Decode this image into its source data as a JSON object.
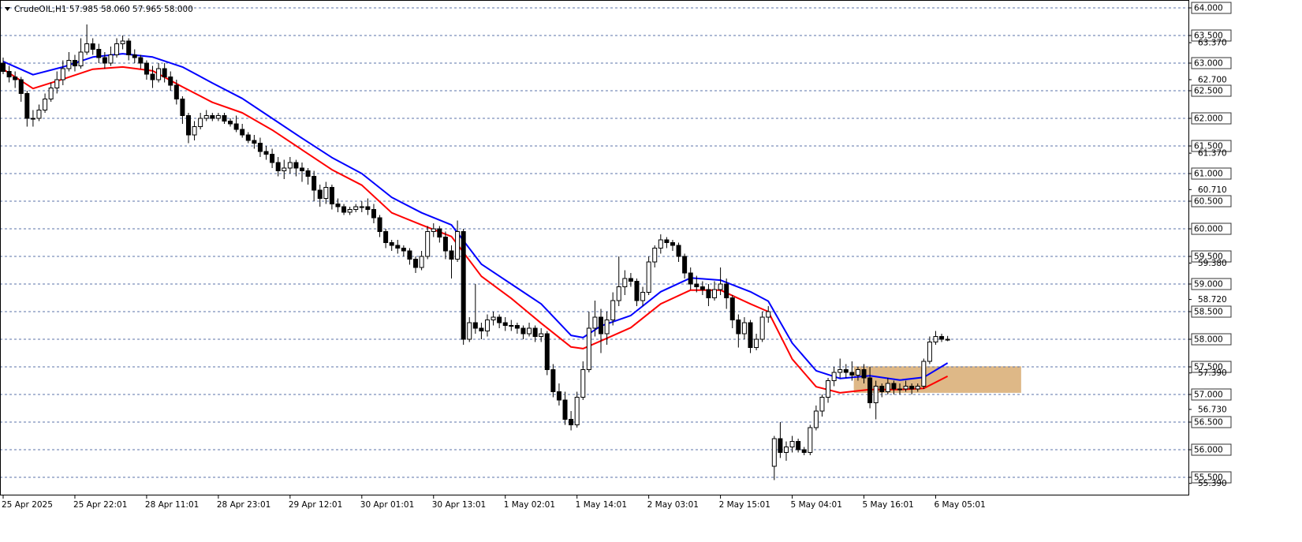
{
  "chart_data": {
    "type": "candlestick",
    "title": "CrudeOIL,H1  57.985 58.060 57.965 58.000",
    "candles": [
      [
        63.0,
        63.1,
        62.8,
        62.85
      ],
      [
        62.85,
        62.95,
        62.65,
        62.75
      ],
      [
        62.75,
        62.85,
        62.55,
        62.7
      ],
      [
        62.7,
        62.75,
        62.3,
        62.45
      ],
      [
        62.45,
        62.5,
        61.85,
        62.0
      ],
      [
        62.0,
        62.15,
        61.85,
        62.0
      ],
      [
        62.0,
        62.25,
        61.95,
        62.15
      ],
      [
        62.15,
        62.45,
        62.1,
        62.35
      ],
      [
        62.35,
        62.65,
        62.3,
        62.55
      ],
      [
        62.55,
        62.85,
        62.45,
        62.7
      ],
      [
        62.7,
        63.05,
        62.6,
        62.9
      ],
      [
        62.9,
        63.2,
        62.85,
        63.05
      ],
      [
        63.05,
        63.15,
        62.85,
        62.95
      ],
      [
        62.95,
        63.45,
        62.9,
        63.2
      ],
      [
        63.2,
        63.7,
        63.15,
        63.35
      ],
      [
        63.35,
        63.45,
        63.15,
        63.25
      ],
      [
        63.25,
        63.35,
        63.0,
        63.1
      ],
      [
        63.1,
        63.2,
        62.9,
        63.0
      ],
      [
        63.0,
        63.3,
        62.95,
        63.15
      ],
      [
        63.15,
        63.45,
        63.1,
        63.35
      ],
      [
        63.35,
        63.5,
        63.25,
        63.4
      ],
      [
        63.4,
        63.45,
        63.05,
        63.15
      ],
      [
        63.15,
        63.25,
        63.0,
        63.1
      ],
      [
        63.1,
        63.15,
        62.9,
        63.0
      ],
      [
        63.0,
        63.05,
        62.7,
        62.8
      ],
      [
        62.8,
        62.95,
        62.55,
        62.7
      ],
      [
        62.7,
        63.0,
        62.65,
        62.9
      ],
      [
        62.9,
        63.0,
        62.65,
        62.75
      ],
      [
        62.75,
        62.85,
        62.5,
        62.6
      ],
      [
        62.6,
        62.7,
        62.25,
        62.35
      ],
      [
        62.35,
        62.4,
        61.9,
        62.05
      ],
      [
        62.05,
        62.1,
        61.55,
        61.7
      ],
      [
        61.7,
        61.95,
        61.6,
        61.85
      ],
      [
        61.85,
        62.1,
        61.8,
        62.0
      ],
      [
        62.0,
        62.15,
        61.95,
        62.05
      ],
      [
        62.05,
        62.1,
        61.95,
        62.0
      ],
      [
        62.0,
        62.1,
        61.95,
        62.05
      ],
      [
        62.05,
        62.1,
        61.9,
        61.95
      ],
      [
        61.95,
        62.0,
        61.85,
        61.9
      ],
      [
        61.9,
        62.05,
        61.75,
        61.8
      ],
      [
        61.8,
        61.9,
        61.65,
        61.7
      ],
      [
        61.7,
        61.75,
        61.55,
        61.6
      ],
      [
        61.6,
        61.7,
        61.45,
        61.55
      ],
      [
        61.55,
        61.65,
        61.3,
        61.4
      ],
      [
        61.4,
        61.5,
        61.25,
        61.35
      ],
      [
        61.35,
        61.45,
        61.1,
        61.2
      ],
      [
        61.2,
        61.3,
        60.95,
        61.05
      ],
      [
        61.05,
        61.25,
        60.9,
        61.1
      ],
      [
        61.1,
        61.3,
        61.0,
        61.2
      ],
      [
        61.2,
        61.25,
        60.95,
        61.1
      ],
      [
        61.1,
        61.2,
        60.85,
        61.05
      ],
      [
        61.05,
        61.1,
        60.8,
        60.95
      ],
      [
        60.95,
        61.05,
        60.5,
        60.7
      ],
      [
        60.7,
        60.8,
        60.4,
        60.55
      ],
      [
        60.55,
        60.85,
        60.45,
        60.75
      ],
      [
        60.75,
        60.8,
        60.35,
        60.45
      ],
      [
        60.45,
        60.55,
        60.3,
        60.4
      ],
      [
        60.4,
        60.45,
        60.25,
        60.3
      ],
      [
        60.3,
        60.4,
        60.25,
        60.35
      ],
      [
        60.35,
        60.45,
        60.3,
        60.4
      ],
      [
        60.4,
        60.5,
        60.3,
        60.4
      ],
      [
        60.4,
        60.55,
        60.25,
        60.35
      ],
      [
        60.35,
        60.45,
        60.1,
        60.2
      ],
      [
        60.2,
        60.25,
        59.85,
        59.95
      ],
      [
        59.95,
        60.0,
        59.65,
        59.75
      ],
      [
        59.75,
        59.8,
        59.6,
        59.7
      ],
      [
        59.7,
        59.8,
        59.55,
        59.65
      ],
      [
        59.65,
        59.7,
        59.5,
        59.6
      ],
      [
        59.6,
        59.65,
        59.35,
        59.45
      ],
      [
        59.45,
        59.5,
        59.2,
        59.3
      ],
      [
        59.3,
        59.6,
        59.25,
        59.5
      ],
      [
        59.5,
        60.05,
        59.45,
        59.95
      ],
      [
        59.95,
        60.1,
        59.85,
        60.0
      ],
      [
        60.0,
        60.05,
        59.75,
        59.85
      ],
      [
        59.85,
        59.95,
        59.45,
        59.6
      ],
      [
        59.6,
        59.7,
        59.1,
        59.45
      ],
      [
        59.45,
        60.15,
        59.4,
        59.95
      ],
      [
        59.95,
        60.0,
        57.9,
        58.0
      ],
      [
        58.0,
        58.4,
        57.95,
        58.3
      ],
      [
        58.3,
        59.0,
        58.1,
        58.2
      ],
      [
        58.2,
        58.3,
        58.0,
        58.15
      ],
      [
        58.15,
        58.45,
        58.05,
        58.35
      ],
      [
        58.35,
        58.5,
        58.25,
        58.4
      ],
      [
        58.4,
        58.45,
        58.2,
        58.3
      ],
      [
        58.3,
        58.4,
        58.15,
        58.25
      ],
      [
        58.25,
        58.35,
        58.15,
        58.25
      ],
      [
        58.25,
        58.3,
        58.1,
        58.2
      ],
      [
        58.2,
        58.25,
        58.0,
        58.1
      ],
      [
        58.1,
        58.3,
        58.05,
        58.2
      ],
      [
        58.2,
        58.25,
        57.95,
        58.05
      ],
      [
        58.05,
        58.2,
        57.95,
        58.1
      ],
      [
        58.1,
        58.15,
        57.35,
        57.45
      ],
      [
        57.45,
        57.55,
        56.95,
        57.05
      ],
      [
        57.05,
        57.2,
        56.8,
        56.9
      ],
      [
        56.9,
        57.05,
        56.45,
        56.55
      ],
      [
        56.55,
        56.7,
        56.35,
        56.45
      ],
      [
        56.45,
        57.05,
        56.4,
        56.95
      ],
      [
        56.95,
        57.6,
        56.9,
        57.45
      ],
      [
        57.45,
        58.5,
        57.4,
        58.2
      ],
      [
        58.2,
        58.7,
        58.05,
        58.4
      ],
      [
        58.4,
        58.55,
        57.75,
        58.1
      ],
      [
        58.1,
        58.5,
        57.9,
        58.35
      ],
      [
        58.35,
        58.85,
        58.25,
        58.7
      ],
      [
        58.7,
        59.5,
        58.6,
        58.95
      ],
      [
        58.95,
        59.25,
        58.8,
        59.1
      ],
      [
        59.1,
        59.2,
        58.95,
        59.05
      ],
      [
        59.05,
        59.1,
        58.6,
        58.7
      ],
      [
        58.7,
        58.95,
        58.6,
        58.85
      ],
      [
        58.85,
        59.5,
        58.8,
        59.4
      ],
      [
        59.4,
        59.7,
        59.3,
        59.65
      ],
      [
        59.65,
        59.9,
        59.55,
        59.8
      ],
      [
        59.8,
        59.85,
        59.65,
        59.75
      ],
      [
        59.75,
        59.8,
        59.6,
        59.7
      ],
      [
        59.7,
        59.75,
        59.4,
        59.5
      ],
      [
        59.5,
        59.55,
        59.1,
        59.2
      ],
      [
        59.2,
        59.3,
        58.9,
        59.0
      ],
      [
        59.0,
        59.15,
        58.85,
        58.95
      ],
      [
        58.95,
        59.05,
        58.8,
        58.9
      ],
      [
        58.9,
        59.0,
        58.6,
        58.75
      ],
      [
        58.75,
        59.05,
        58.7,
        58.9
      ],
      [
        58.9,
        59.3,
        58.8,
        59.0
      ],
      [
        59.0,
        59.1,
        58.55,
        58.75
      ],
      [
        58.75,
        58.8,
        58.2,
        58.35
      ],
      [
        58.35,
        58.45,
        57.85,
        58.1
      ],
      [
        58.1,
        58.4,
        58.0,
        58.3
      ],
      [
        58.3,
        58.35,
        57.75,
        57.85
      ],
      [
        57.85,
        58.1,
        57.8,
        58.0
      ],
      [
        58.0,
        58.5,
        57.95,
        58.4
      ],
      [
        58.4,
        58.6,
        58.3,
        58.5
      ],
      [
        55.7,
        56.25,
        55.45,
        56.2
      ],
      [
        56.2,
        56.5,
        55.85,
        55.95
      ],
      [
        55.95,
        56.15,
        55.8,
        56.05
      ],
      [
        56.05,
        56.25,
        55.95,
        56.15
      ],
      [
        56.15,
        56.2,
        55.95,
        56.0
      ],
      [
        56.0,
        56.05,
        55.9,
        55.95
      ],
      [
        55.95,
        56.45,
        55.9,
        56.4
      ],
      [
        56.4,
        56.8,
        56.35,
        56.7
      ],
      [
        56.7,
        57.0,
        56.6,
        56.95
      ],
      [
        56.95,
        57.3,
        56.85,
        57.25
      ],
      [
        57.25,
        57.5,
        57.15,
        57.4
      ],
      [
        57.4,
        57.65,
        57.3,
        57.45
      ],
      [
        57.45,
        57.55,
        57.3,
        57.4
      ],
      [
        57.4,
        57.6,
        57.25,
        57.35
      ],
      [
        57.35,
        57.5,
        57.25,
        57.45
      ],
      [
        57.45,
        57.55,
        57.2,
        57.3
      ],
      [
        57.3,
        57.5,
        56.75,
        56.85
      ],
      [
        56.85,
        57.25,
        56.55,
        57.15
      ],
      [
        57.15,
        57.2,
        56.95,
        57.05
      ],
      [
        57.05,
        57.3,
        57.0,
        57.2
      ],
      [
        57.2,
        57.25,
        57.0,
        57.1
      ],
      [
        57.1,
        57.2,
        57.0,
        57.1
      ],
      [
        57.1,
        57.25,
        57.05,
        57.15
      ],
      [
        57.15,
        57.2,
        57.0,
        57.1
      ],
      [
        57.1,
        57.2,
        57.05,
        57.15
      ],
      [
        57.15,
        57.65,
        57.1,
        57.6
      ],
      [
        57.6,
        58.05,
        57.55,
        57.95
      ],
      [
        57.95,
        58.15,
        57.9,
        58.05
      ],
      [
        58.05,
        58.1,
        57.95,
        58.0
      ],
      [
        57.985,
        58.06,
        57.965,
        58.0
      ]
    ],
    "lines": [
      {
        "color": "#0000ff",
        "x": [
          0,
          5,
          10,
          15,
          20,
          25,
          30,
          35,
          40,
          45,
          50,
          55,
          60,
          65,
          70,
          75,
          80,
          85,
          90,
          95,
          97,
          100,
          105,
          110,
          115,
          120,
          125,
          128,
          132,
          136,
          140,
          145,
          150,
          154,
          158
        ],
        "values": [
          63.03,
          62.79,
          62.93,
          63.11,
          63.17,
          63.11,
          62.93,
          62.64,
          62.36,
          62.0,
          61.64,
          61.29,
          61.0,
          60.57,
          60.29,
          60.07,
          59.36,
          59.0,
          58.64,
          58.07,
          58.03,
          58.24,
          58.43,
          58.86,
          59.11,
          59.07,
          58.86,
          58.69,
          57.93,
          57.43,
          57.29,
          57.34,
          57.26,
          57.31,
          57.57
        ]
      },
      {
        "color": "#ff0000",
        "x": [
          0,
          5,
          10,
          15,
          20,
          25,
          30,
          35,
          40,
          45,
          50,
          55,
          60,
          65,
          70,
          75,
          80,
          85,
          90,
          95,
          97,
          100,
          105,
          110,
          115,
          120,
          125,
          128,
          132,
          136,
          140,
          145,
          150,
          154,
          158
        ],
        "values": [
          62.89,
          62.54,
          62.71,
          62.89,
          62.93,
          62.86,
          62.57,
          62.29,
          62.1,
          61.79,
          61.43,
          61.07,
          60.79,
          60.29,
          60.07,
          59.86,
          59.14,
          58.74,
          58.29,
          57.86,
          57.83,
          57.97,
          58.21,
          58.64,
          58.89,
          58.89,
          58.64,
          58.5,
          57.64,
          57.14,
          57.03,
          57.09,
          57.09,
          57.11,
          57.33
        ]
      }
    ],
    "zone": {
      "xlim": [
        142.3,
        170.3
      ],
      "ylim": [
        57.03,
        57.51
      ],
      "color": "#deb887"
    },
    "xlim": [
      -0.528,
      198.417
    ],
    "ylim": [
      55.186,
      64.143
    ],
    "xticks": [
      {
        "value": 0,
        "label": "25 Apr 2025"
      },
      {
        "value": 12,
        "label": "25 Apr 22:01"
      },
      {
        "value": 24,
        "label": "28 Apr 11:01"
      },
      {
        "value": 36,
        "label": "28 Apr 23:01"
      },
      {
        "value": 48,
        "label": "29 Apr 12:01"
      },
      {
        "value": 60,
        "label": "30 Apr 01:01"
      },
      {
        "value": 72,
        "label": "30 Apr 13:01"
      },
      {
        "value": 84,
        "label": "1 May 02:01"
      },
      {
        "value": 96,
        "label": "1 May 14:01"
      },
      {
        "value": 108,
        "label": "2 May 03:01"
      },
      {
        "value": 120,
        "label": "2 May 15:01"
      },
      {
        "value": 132,
        "label": "5 May 04:01"
      },
      {
        "value": 144,
        "label": "5 May 16:01"
      },
      {
        "value": 156,
        "label": "6 May 05:01"
      }
    ],
    "yticks": [
      {
        "value": 64,
        "label": "64.000"
      },
      {
        "value": 63.5,
        "label": "63.500"
      },
      {
        "value": 63,
        "label": "63.000"
      },
      {
        "value": 62.5,
        "label": "62.500"
      },
      {
        "value": 62,
        "label": "62.000"
      },
      {
        "value": 61.5,
        "label": "61.500"
      },
      {
        "value": 61,
        "label": "61.000"
      },
      {
        "value": 60.5,
        "label": "60.500"
      },
      {
        "value": 60,
        "label": "60.000"
      },
      {
        "value": 59.5,
        "label": "59.500"
      },
      {
        "value": 59,
        "label": "59.000"
      },
      {
        "value": 58.5,
        "label": "58.500"
      },
      {
        "value": 58,
        "label": "58.000"
      },
      {
        "value": 57.5,
        "label": "57.500"
      },
      {
        "value": 57,
        "label": "57.000"
      },
      {
        "value": 56.5,
        "label": "56.500"
      },
      {
        "value": 56,
        "label": "56.000"
      },
      {
        "value": 55.5,
        "label": "55.500"
      }
    ],
    "yticks_minor": [
      {
        "value": 63.37,
        "label": "63.370"
      },
      {
        "value": 62.7,
        "label": "62.700"
      },
      {
        "value": 61.37,
        "label": "61.370"
      },
      {
        "value": 60.71,
        "label": "60.710"
      },
      {
        "value": 59.38,
        "label": "59.380"
      },
      {
        "value": 58.72,
        "label": "58.720"
      },
      {
        "value": 57.39,
        "label": "57.390"
      },
      {
        "value": 56.73,
        "label": "56.730"
      },
      {
        "value": 55.39,
        "label": "55.390"
      }
    ],
    "grid": true
  }
}
